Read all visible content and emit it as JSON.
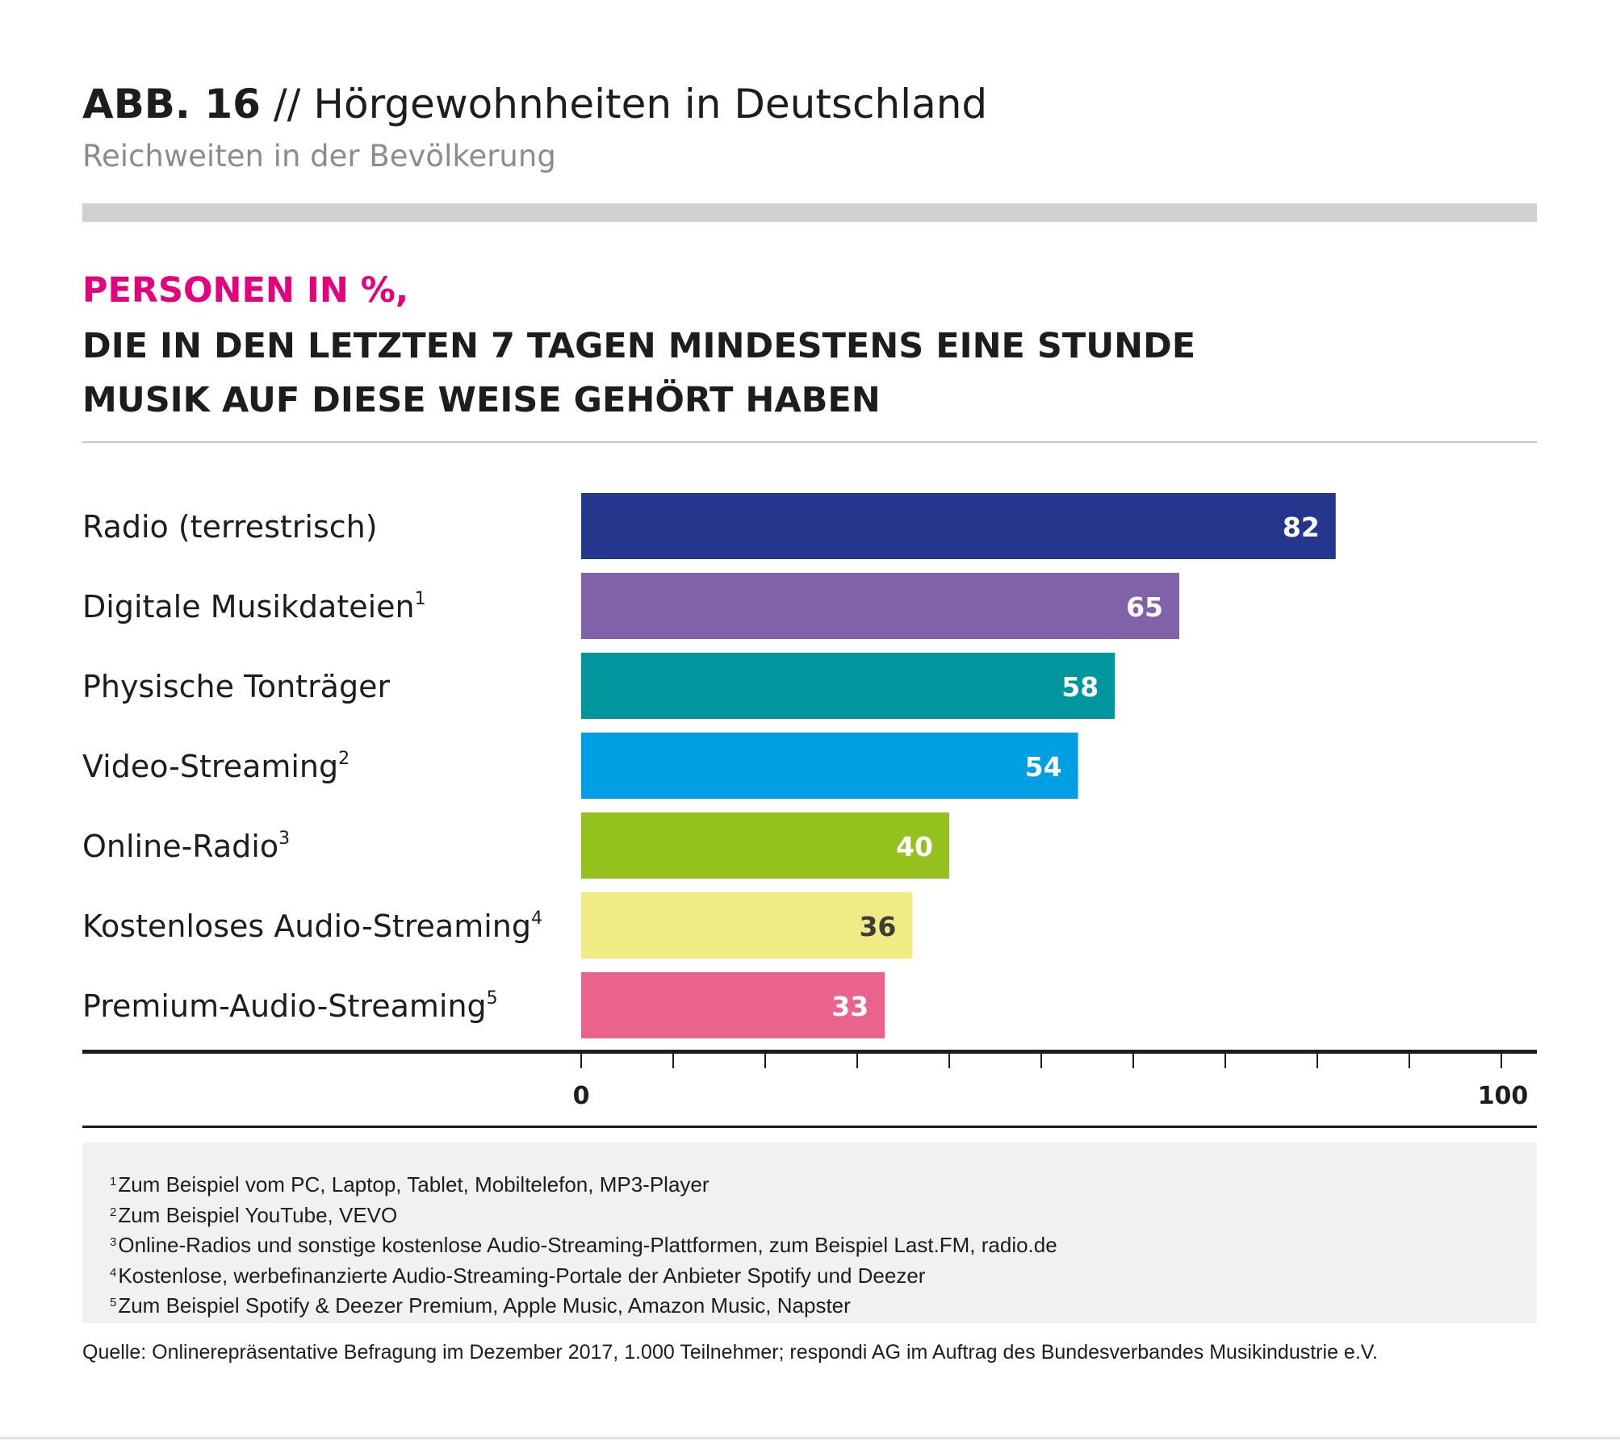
{
  "header": {
    "figure_number": "ABB. 16",
    "title": "// Hörgewohnheiten in Deutschland",
    "subtitle": "Reichweiten in der Bevölkerung"
  },
  "headline": {
    "line1": "PERSONEN IN %,",
    "line2": "DIE IN DEN LETZTEN 7 TAGEN  MINDESTENS EINE STUNDE",
    "line3": "MUSIK AUF DIESE WEISE GEHÖRT HABEN"
  },
  "colors": {
    "accent_magenta": "#e5007d",
    "text": "#1d1d1b"
  },
  "chart_data": {
    "type": "bar",
    "orientation": "horizontal",
    "categories": [
      "Radio (terrestrisch)",
      "Digitale Musikdateien",
      "Physische Tonträger",
      "Video-Streaming",
      "Online-Radio",
      "Kostenloses Audio-Streaming",
      "Premium-Audio-Streaming"
    ],
    "footnote_marks": [
      "",
      "1",
      "",
      "2",
      "3",
      "4",
      "5"
    ],
    "values": [
      82,
      65,
      58,
      54,
      40,
      36,
      33
    ],
    "value_labels": [
      "82",
      "65",
      "58",
      "54",
      "40",
      "36",
      "33"
    ],
    "bar_colors": [
      "#25378c",
      "#8162a8",
      "#00969d",
      "#009fe3",
      "#95c11f",
      "#f0eb82",
      "#ea638c"
    ],
    "label_colors": [
      "#ffffff",
      "#ffffff",
      "#ffffff",
      "#ffffff",
      "#ffffff",
      "#3c3c3b",
      "#ffffff"
    ],
    "xlim": [
      0,
      100
    ],
    "major_tick_labels": [
      "0",
      "100"
    ],
    "minor_tick_step": 10,
    "grid": false,
    "legend": "none"
  },
  "footnotes": [
    {
      "mark": "1",
      "text": "Zum Beispiel vom PC, Laptop, Tablet, Mobiltelefon, MP3-Player"
    },
    {
      "mark": "2",
      "text": "Zum Beispiel YouTube, VEVO"
    },
    {
      "mark": "3",
      "text": "Online-Radios und sonstige kostenlose Audio-Streaming-Plattformen, zum Beispiel Last.FM, radio.de"
    },
    {
      "mark": "4",
      "text": "Kostenlose, werbefinanzierte Audio-Streaming-Portale der Anbieter Spotify und Deezer"
    },
    {
      "mark": "5",
      "text": "Zum Beispiel Spotify & Deezer Premium, Apple Music, Amazon Music, Napster"
    }
  ],
  "source": "Quelle: Onlinerepräsentative Befragung im Dezember 2017, 1.000 Teilnehmer; respondi AG im Auftrag des Bundesverbandes Musikindustrie e.V."
}
